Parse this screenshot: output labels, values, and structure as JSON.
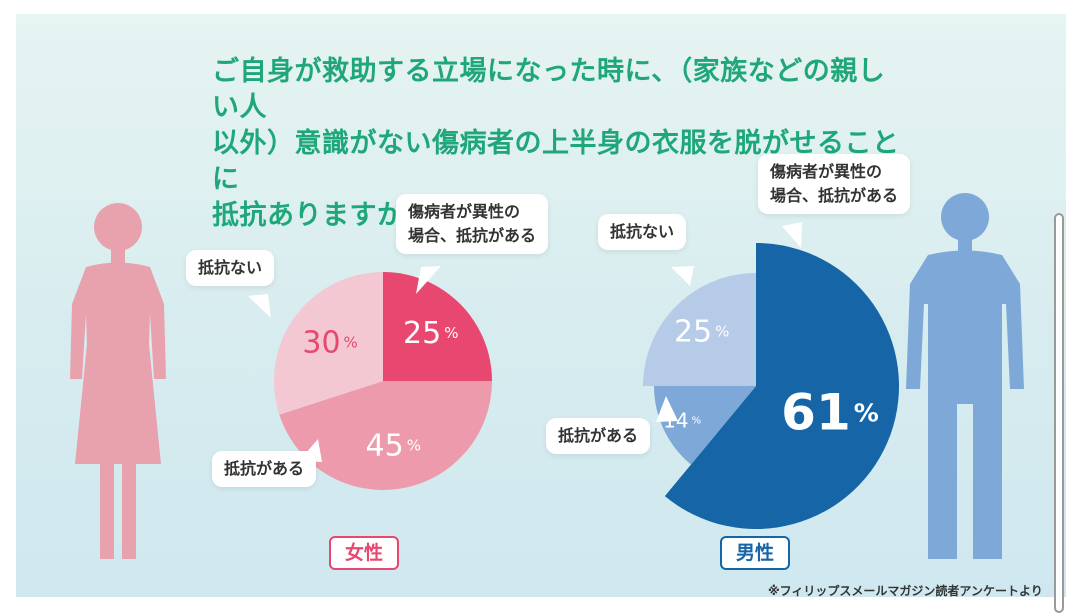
{
  "title": "ご自身が救助する立場になった時に、（家族などの親しい人\n以外）意識がない傷病者の上半身の衣服を脱がせることに\n抵抗ありますか？",
  "source_note": "※フィリップスメールマガジン読者アンケートより",
  "colors": {
    "title": "#1fa77a",
    "female_accent": "#e8476f",
    "male_accent": "#1565a7",
    "female_figure": "#e8a2ae",
    "male_figure": "#7ea8d8"
  },
  "icons": {
    "female": "female-person-icon",
    "male": "male-person-icon"
  },
  "chart_data": [
    {
      "type": "pie",
      "group_label": "女性",
      "slices": [
        {
          "label": "傷病者が異性の\n場合、抵抗がある",
          "value": 25,
          "value_text": "25",
          "color": "#e8476f",
          "text_color": "#ffffff"
        },
        {
          "label": "抵抗がある",
          "value": 45,
          "value_text": "45",
          "color": "#ec9aac",
          "text_color": "#ffffff"
        },
        {
          "label": "抵抗ない",
          "value": 30,
          "value_text": "30",
          "color": "#f3c8d2",
          "text_color": "#e8476f"
        }
      ],
      "unit": "%"
    },
    {
      "type": "pie",
      "group_label": "男性",
      "slices": [
        {
          "label": "傷病者が異性の\n場合、抵抗がある",
          "value": 61,
          "value_text": "61",
          "color": "#1565a7",
          "text_color": "#ffffff"
        },
        {
          "label": "抵抗がある",
          "value": 14,
          "value_text": "14",
          "color": "#7ea8d8",
          "text_color": "#ffffff"
        },
        {
          "label": "抵抗ない",
          "value": 25,
          "value_text": "25",
          "color": "#b6cbe8",
          "text_color": "#ffffff"
        }
      ],
      "unit": "%"
    }
  ]
}
